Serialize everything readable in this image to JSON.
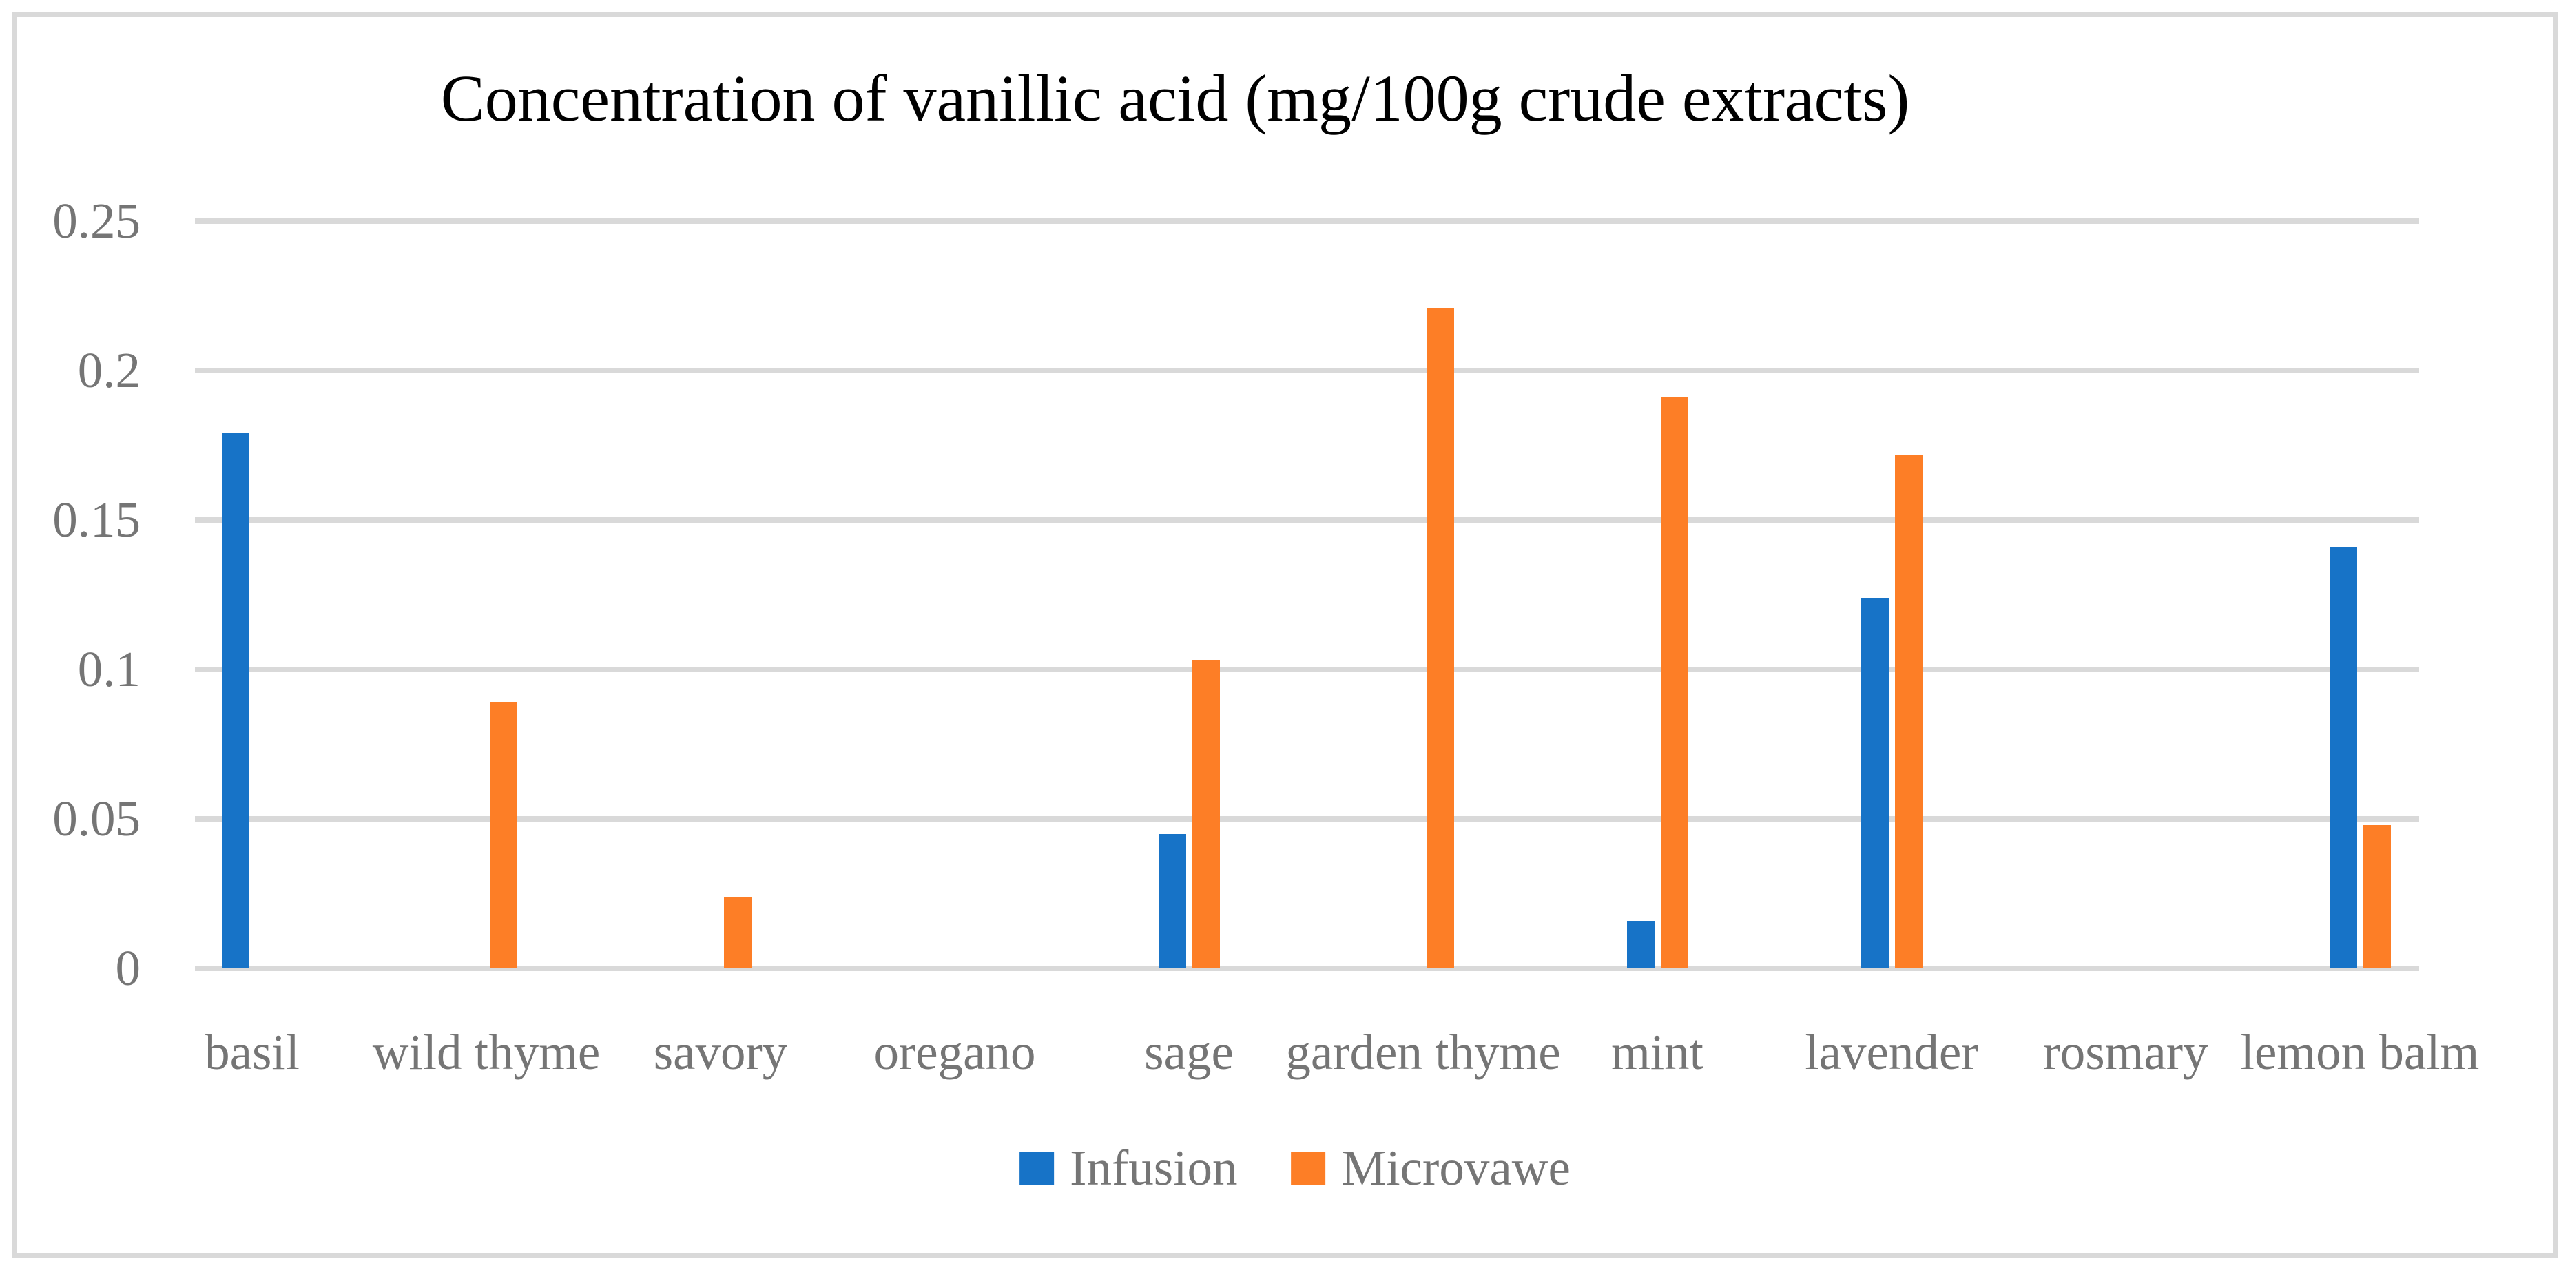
{
  "title": "Concentration of vanillic acid (mg/100g crude extracts)",
  "legend": {
    "items": [
      {
        "label": "Infusion",
        "color": "#1773C7"
      },
      {
        "label": "Microvawe",
        "color": "#FD7E26"
      }
    ]
  },
  "colors": {
    "infusion_blue": "#1773C7",
    "microwave_orange": "#FD7E26",
    "gridline_gray": "#D9D9D9",
    "frame_gray": "#D9D9D9",
    "label_gray": "#757575",
    "title_black": "#000000",
    "background": "#FFFFFF"
  },
  "chart_data": {
    "type": "bar",
    "title": "Concentration of vanillic acid (mg/100g crude extracts)",
    "categories": [
      "basil",
      "wild thyme",
      "savory",
      "oregano",
      "sage",
      "garden thyme",
      "mint",
      "lavender",
      "rosmary",
      "lemon balm"
    ],
    "series": [
      {
        "name": "Infusion",
        "color": "#1773C7",
        "values": [
          0.179,
          0,
          0,
          0,
          0.045,
          0,
          0.016,
          0.124,
          0,
          0.141
        ]
      },
      {
        "name": "Microvawe",
        "color": "#FD7E26",
        "values": [
          0,
          0.089,
          0.024,
          0,
          0.103,
          0.221,
          0.191,
          0.172,
          0,
          0.048
        ]
      }
    ],
    "xlabel": "",
    "ylabel": "",
    "y_ticks": [
      "0.25",
      "0.2",
      "0.15",
      "0.1",
      "0.05",
      "0"
    ],
    "ylim": [
      0,
      0.25
    ],
    "grid": true,
    "legend_position": "bottom"
  }
}
